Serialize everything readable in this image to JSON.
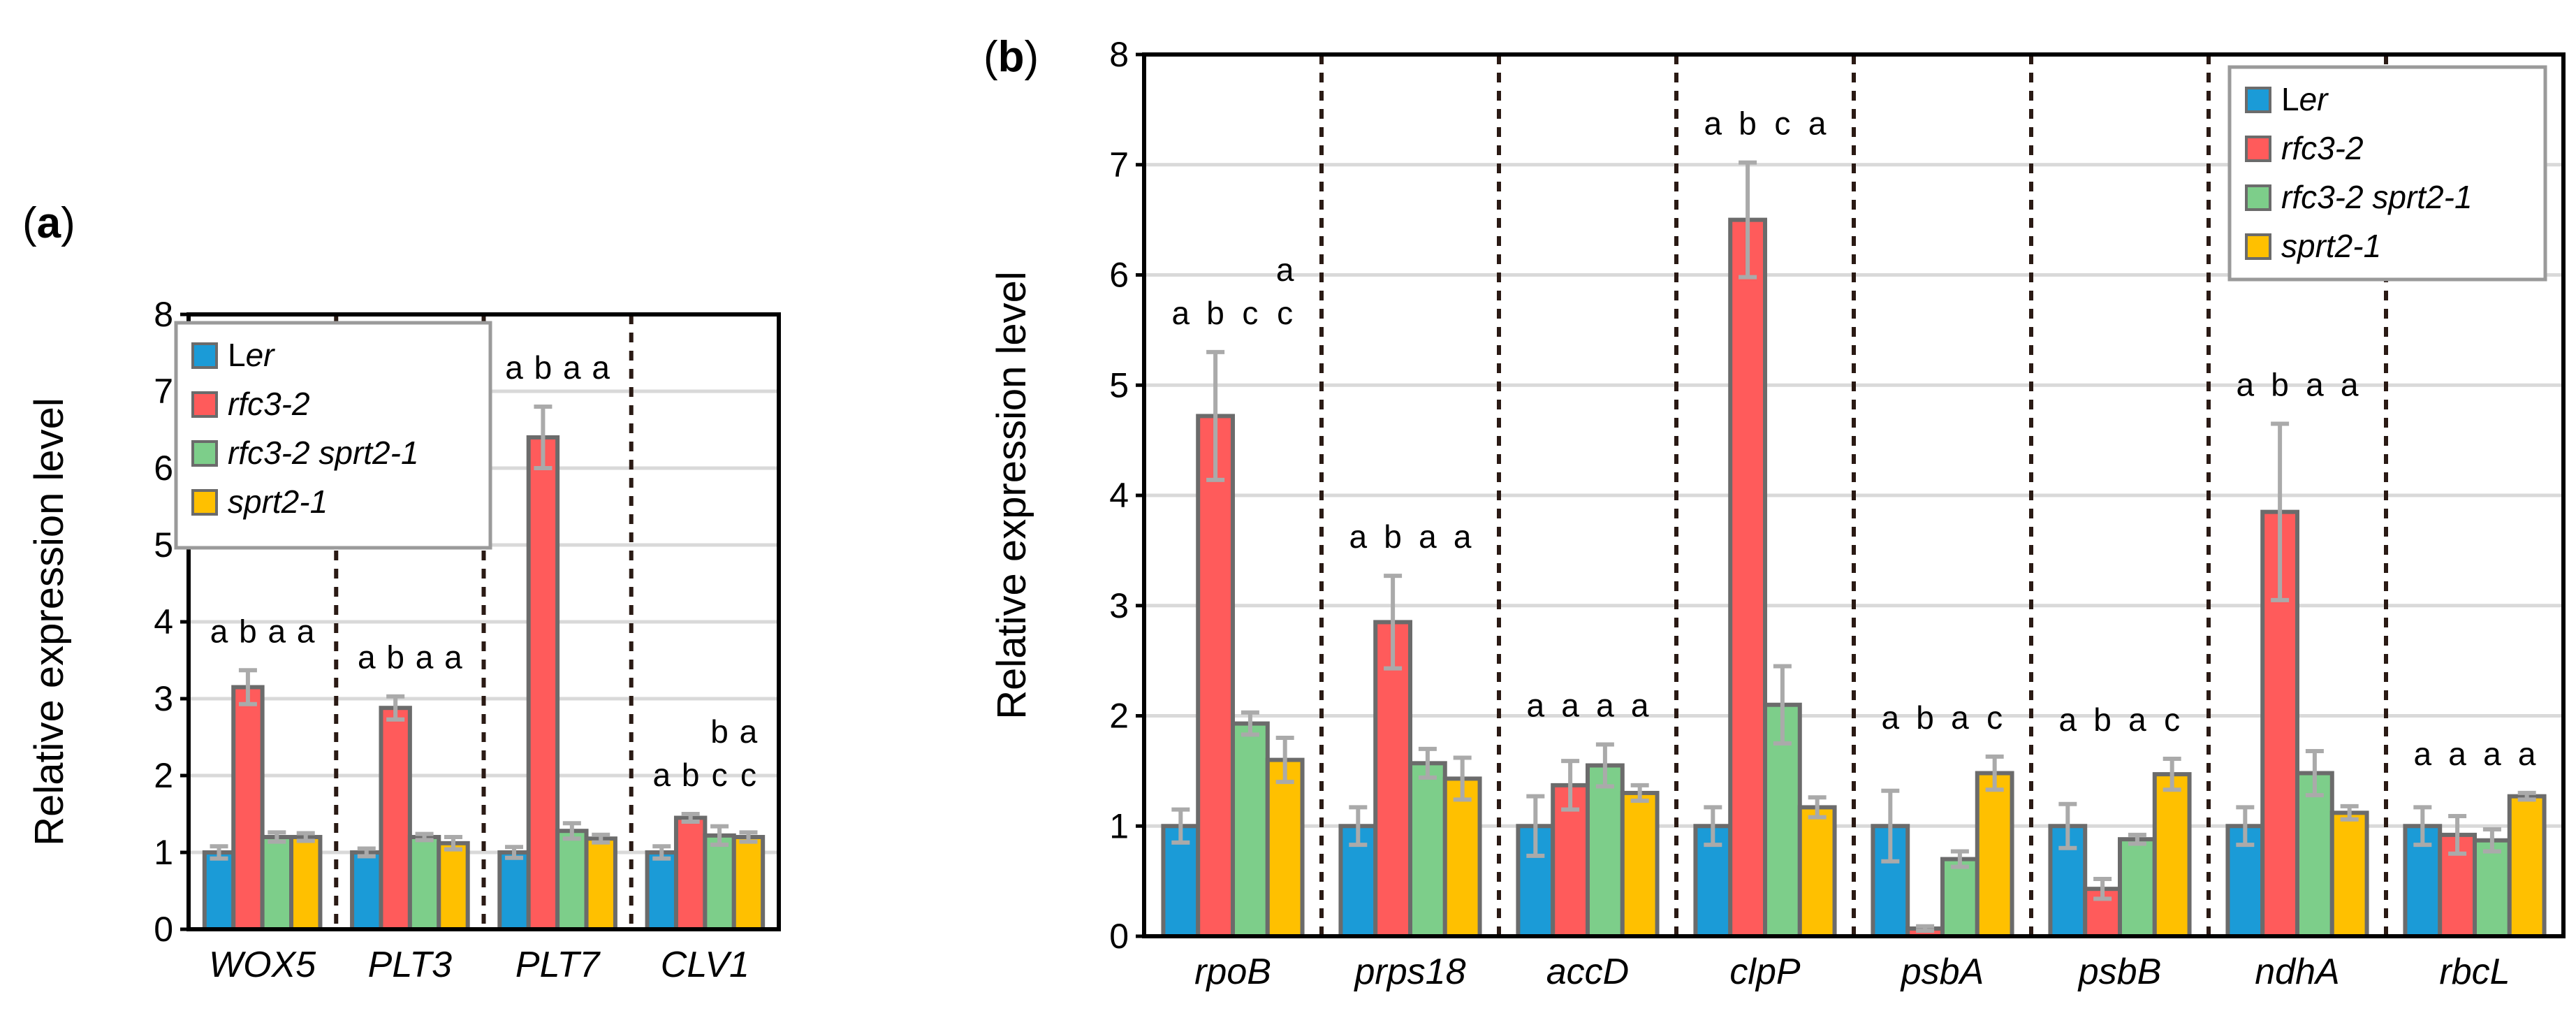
{
  "figure": {
    "series": [
      {
        "name_prefix": "L",
        "name_italic": "er",
        "color": "#1B9BD7"
      },
      {
        "name_prefix": "",
        "name_italic": "rfc3-2",
        "color": "#FF5B5B"
      },
      {
        "name_prefix": "",
        "name_italic": "rfc3-2 sprt2-1",
        "color": "#7DCE8A"
      },
      {
        "name_prefix": "",
        "name_italic": "sprt2-1",
        "color": "#FFC000"
      }
    ],
    "bar_outline_color": "#6B6B6B",
    "error_bar_color": "#AAAAAA",
    "grid_color": "#D9D9D9"
  },
  "chart_data": [
    {
      "type": "bar",
      "panel_label": "a",
      "ylabel": "Relative expression level",
      "ylim": [
        0,
        8
      ],
      "yticks": [
        0,
        1,
        2,
        3,
        4,
        5,
        6,
        7,
        8
      ],
      "grid": true,
      "legend_position": "top-left",
      "categories": [
        "WOX5",
        "PLT3",
        "PLT7",
        "CLV1"
      ],
      "series": [
        {
          "name": "Ler",
          "values": [
            1.0,
            1.0,
            1.0,
            1.0
          ],
          "errors": [
            0.08,
            0.05,
            0.07,
            0.08
          ]
        },
        {
          "name": "rfc3-2",
          "values": [
            3.15,
            2.88,
            6.4,
            1.45
          ],
          "errors": [
            0.22,
            0.15,
            0.4,
            0.05
          ]
        },
        {
          "name": "rfc3-2 sprt2-1",
          "values": [
            1.2,
            1.2,
            1.28,
            1.22
          ],
          "errors": [
            0.06,
            0.04,
            0.1,
            0.12
          ]
        },
        {
          "name": "sprt2-1",
          "values": [
            1.2,
            1.12,
            1.18,
            1.2
          ],
          "errors": [
            0.05,
            0.08,
            0.05,
            0.06
          ]
        }
      ],
      "significance": [
        [
          [
            "a"
          ],
          [
            "b"
          ],
          [
            "a"
          ],
          [
            "a"
          ]
        ],
        [
          [
            "a"
          ],
          [
            "b"
          ],
          [
            "a"
          ],
          [
            "a"
          ]
        ],
        [
          [
            "a"
          ],
          [
            "b"
          ],
          [
            "a"
          ],
          [
            "a"
          ]
        ],
        [
          [
            "a"
          ],
          [
            "b"
          ],
          [
            "b",
            "c"
          ],
          [
            "a",
            "c"
          ]
        ]
      ]
    },
    {
      "type": "bar",
      "panel_label": "b",
      "ylabel": "Relative expression level",
      "ylim": [
        0,
        8
      ],
      "yticks": [
        0,
        1,
        2,
        3,
        4,
        5,
        6,
        7,
        8
      ],
      "grid": true,
      "legend_position": "top-right",
      "categories": [
        "rpoB",
        "prps18",
        "accD",
        "clpP",
        "psbA",
        "psbB",
        "ndhA",
        "rbcL"
      ],
      "series": [
        {
          "name": "Ler",
          "values": [
            1.0,
            1.0,
            1.0,
            1.0,
            1.0,
            1.0,
            1.0,
            1.0
          ],
          "errors": [
            0.15,
            0.17,
            0.27,
            0.17,
            0.32,
            0.2,
            0.17,
            0.17
          ]
        },
        {
          "name": "rfc3-2",
          "values": [
            4.72,
            2.85,
            1.37,
            6.5,
            0.07,
            0.43,
            3.85,
            0.92
          ],
          "errors": [
            0.58,
            0.42,
            0.22,
            0.52,
            0.02,
            0.09,
            0.8,
            0.17
          ]
        },
        {
          "name": "rfc3-2 sprt2-1",
          "values": [
            1.93,
            1.57,
            1.55,
            2.1,
            0.7,
            0.88,
            1.48,
            0.87
          ],
          "errors": [
            0.1,
            0.13,
            0.19,
            0.35,
            0.07,
            0.04,
            0.2,
            0.1
          ]
        },
        {
          "name": "sprt2-1",
          "values": [
            1.6,
            1.43,
            1.3,
            1.17,
            1.48,
            1.47,
            1.12,
            1.27
          ],
          "errors": [
            0.2,
            0.19,
            0.07,
            0.09,
            0.15,
            0.14,
            0.06,
            0.03
          ]
        }
      ],
      "significance": [
        [
          [
            "a"
          ],
          [
            "b"
          ],
          [
            "c"
          ],
          [
            "a",
            "c"
          ]
        ],
        [
          [
            "a"
          ],
          [
            "b"
          ],
          [
            "a"
          ],
          [
            "a"
          ]
        ],
        [
          [
            "a"
          ],
          [
            "a"
          ],
          [
            "a"
          ],
          [
            "a"
          ]
        ],
        [
          [
            "a"
          ],
          [
            "b"
          ],
          [
            "c"
          ],
          [
            "a"
          ]
        ],
        [
          [
            "a"
          ],
          [
            "b"
          ],
          [
            "a"
          ],
          [
            "c"
          ]
        ],
        [
          [
            "a"
          ],
          [
            "b"
          ],
          [
            "a"
          ],
          [
            "c"
          ]
        ],
        [
          [
            "a"
          ],
          [
            "b"
          ],
          [
            "a"
          ],
          [
            "a"
          ]
        ],
        [
          [
            "a"
          ],
          [
            "a"
          ],
          [
            "a"
          ],
          [
            "a"
          ]
        ]
      ]
    }
  ]
}
